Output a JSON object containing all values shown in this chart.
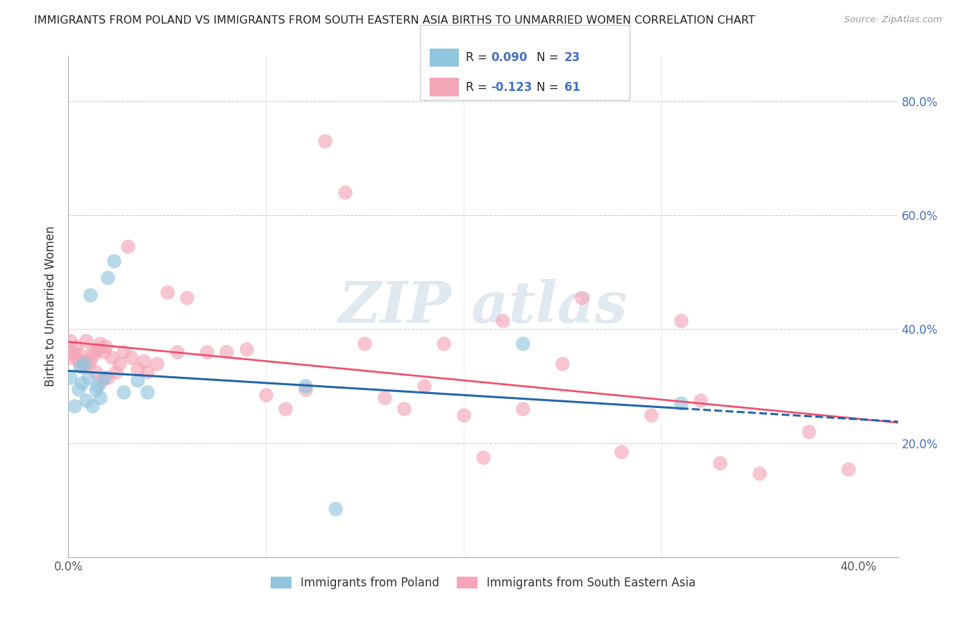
{
  "title": "IMMIGRANTS FROM POLAND VS IMMIGRANTS FROM SOUTH EASTERN ASIA BIRTHS TO UNMARRIED WOMEN CORRELATION CHART",
  "source": "Source: ZipAtlas.com",
  "ylabel": "Births to Unmarried Women",
  "xlim": [
    0.0,
    0.42
  ],
  "ylim": [
    0.0,
    0.88
  ],
  "color_poland": "#92c5de",
  "color_sea": "#f4a6b8",
  "color_poland_line": "#2166ac",
  "color_sea_line": "#f0506e",
  "color_right_labels": "#4472c4",
  "color_grid": "#cccccc",
  "watermark_color": "#e0e8f0",
  "poland_x": [
    0.001,
    0.003,
    0.005,
    0.006,
    0.007,
    0.008,
    0.009,
    0.01,
    0.011,
    0.012,
    0.014,
    0.015,
    0.016,
    0.018,
    0.02,
    0.023,
    0.028,
    0.035,
    0.04,
    0.12,
    0.135,
    0.23,
    0.31
  ],
  "poland_y": [
    0.315,
    0.265,
    0.295,
    0.335,
    0.305,
    0.34,
    0.275,
    0.315,
    0.46,
    0.265,
    0.295,
    0.3,
    0.28,
    0.315,
    0.49,
    0.52,
    0.29,
    0.31,
    0.29,
    0.3,
    0.085,
    0.375,
    0.27
  ],
  "sea_x": [
    0.001,
    0.001,
    0.002,
    0.003,
    0.004,
    0.005,
    0.006,
    0.007,
    0.008,
    0.009,
    0.01,
    0.011,
    0.012,
    0.013,
    0.014,
    0.015,
    0.016,
    0.017,
    0.018,
    0.019,
    0.02,
    0.022,
    0.024,
    0.026,
    0.028,
    0.03,
    0.032,
    0.035,
    0.038,
    0.04,
    0.045,
    0.05,
    0.055,
    0.06,
    0.07,
    0.08,
    0.09,
    0.1,
    0.11,
    0.12,
    0.13,
    0.14,
    0.15,
    0.16,
    0.17,
    0.18,
    0.19,
    0.2,
    0.21,
    0.22,
    0.23,
    0.25,
    0.26,
    0.28,
    0.295,
    0.31,
    0.32,
    0.33,
    0.35,
    0.375,
    0.395
  ],
  "sea_y": [
    0.38,
    0.35,
    0.36,
    0.355,
    0.37,
    0.345,
    0.355,
    0.335,
    0.345,
    0.38,
    0.34,
    0.345,
    0.36,
    0.355,
    0.325,
    0.365,
    0.375,
    0.31,
    0.36,
    0.37,
    0.315,
    0.35,
    0.325,
    0.34,
    0.36,
    0.545,
    0.35,
    0.33,
    0.345,
    0.325,
    0.34,
    0.465,
    0.36,
    0.455,
    0.36,
    0.36,
    0.365,
    0.285,
    0.26,
    0.295,
    0.73,
    0.64,
    0.375,
    0.28,
    0.26,
    0.3,
    0.375,
    0.25,
    0.175,
    0.415,
    0.26,
    0.34,
    0.455,
    0.185,
    0.25,
    0.415,
    0.275,
    0.165,
    0.147,
    0.22,
    0.155
  ]
}
